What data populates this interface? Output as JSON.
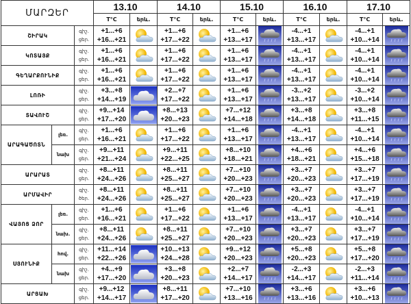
{
  "header": {
    "title": "ՄԱՐԶԵՐ",
    "dates": [
      "13.10",
      "14.10",
      "15.10",
      "16.10",
      "17.10"
    ],
    "temp_label": "T°C",
    "icon_label": "երև."
  },
  "icon_types": {
    "partly": "partly-cloudy-icon",
    "cloud": "cloudy-icon",
    "rain": "rain-cloud-icon"
  },
  "regions": [
    {
      "name": "ՇԻՐԱԿ",
      "zones": [
        {
          "zone": "",
          "night_label": "գիշ.",
          "day_label": "ցեր.",
          "days": [
            {
              "night": "+1...+6",
              "day": "+16...+21",
              "icon": "partly"
            },
            {
              "night": "+1...+6",
              "day": "+17...+22",
              "icon": "partly"
            },
            {
              "night": "+1...+6",
              "day": "+13...+17",
              "icon": "rain"
            },
            {
              "night": "-4...+1",
              "day": "+13...+17",
              "icon": "partly"
            },
            {
              "night": "-4...+1",
              "day": "+10...+14",
              "icon": "rain"
            }
          ]
        }
      ]
    },
    {
      "name": "ԿՈՏԱՅՔ",
      "zones": [
        {
          "zone": "",
          "night_label": "գիշ.",
          "day_label": "ցեր.",
          "days": [
            {
              "night": "+1...+6",
              "day": "+16...+21",
              "icon": "partly"
            },
            {
              "night": "+1...+6",
              "day": "+17...+22",
              "icon": "partly"
            },
            {
              "night": "+1...+6",
              "day": "+13...+17",
              "icon": "rain"
            },
            {
              "night": "-4...+1",
              "day": "+13...+17",
              "icon": "partly"
            },
            {
              "night": "-4...+1",
              "day": "+10...+14",
              "icon": "rain"
            }
          ]
        }
      ]
    },
    {
      "name": "ԳԵՂԱՐՔՈՒՆԻՔ",
      "zones": [
        {
          "zone": "",
          "night_label": "գիշ.",
          "day_label": "ցեր.",
          "days": [
            {
              "night": "+1...+6",
              "day": "+16...+21",
              "icon": "partly"
            },
            {
              "night": "+1...+6",
              "day": "+17...+22",
              "icon": "partly"
            },
            {
              "night": "+1...+6",
              "day": "+13...+17",
              "icon": "rain"
            },
            {
              "night": "-4...+1",
              "day": "+13...+17",
              "icon": "partly"
            },
            {
              "night": "-4...+1",
              "day": "+10...+14",
              "icon": "rain"
            }
          ]
        }
      ]
    },
    {
      "name": "ԼՈՌԻ",
      "zones": [
        {
          "zone": "",
          "night_label": "գիշ.",
          "day_label": "ցեր.",
          "days": [
            {
              "night": "+3...+8",
              "day": "+14...+19",
              "icon": "cloud"
            },
            {
              "night": "+2...+7",
              "day": "+17...+22",
              "icon": "partly"
            },
            {
              "night": "+1...+6",
              "day": "+13...+17",
              "icon": "rain"
            },
            {
              "night": "-3...+2",
              "day": "+13...+17",
              "icon": "partly"
            },
            {
              "night": "-3...+2",
              "day": "+10...+14",
              "icon": "rain"
            }
          ]
        }
      ]
    },
    {
      "name": "ՏԱՎՈՒՇ",
      "zones": [
        {
          "zone": "",
          "night_label": "գիշ.",
          "day_label": "ցեր.",
          "days": [
            {
              "night": "+9...+14",
              "day": "+17...+20",
              "icon": "cloud"
            },
            {
              "night": "+8...+13",
              "day": "+20...+23",
              "icon": "partly"
            },
            {
              "night": "+7...+12",
              "day": "+14...+18",
              "icon": "rain"
            },
            {
              "night": "+3...+8",
              "day": "+14...+18",
              "icon": "partly"
            },
            {
              "night": "+3...+8",
              "day": "+11...+15",
              "icon": "rain"
            }
          ]
        }
      ]
    },
    {
      "name": "ԱՐԱԳԱԾՈՏՆ",
      "zones": [
        {
          "zone": "լեռ.",
          "night_label": "գիշ.",
          "day_label": "ցեր.",
          "days": [
            {
              "night": "+1...+6",
              "day": "+16...+21",
              "icon": "partly"
            },
            {
              "night": "+1...+6",
              "day": "+17...+22",
              "icon": "partly"
            },
            {
              "night": "+1...+6",
              "day": "+13...+17",
              "icon": "rain"
            },
            {
              "night": "-4...+1",
              "day": "+13...+17",
              "icon": "partly"
            },
            {
              "night": "-4...+1",
              "day": "+10...+14",
              "icon": "rain"
            }
          ]
        },
        {
          "zone": "նախ",
          "night_label": "գիշ.",
          "day_label": "ցեր.",
          "days": [
            {
              "night": "+9...+11",
              "day": "+21...+24",
              "icon": "partly"
            },
            {
              "night": "+9...+11",
              "day": "+22...+25",
              "icon": "partly"
            },
            {
              "night": "+8...+10",
              "day": "+18...+21",
              "icon": "rain"
            },
            {
              "night": "+4...+6",
              "day": "+18...+21",
              "icon": "partly"
            },
            {
              "night": "+4...+6",
              "day": "+15...+18",
              "icon": "rain"
            }
          ]
        }
      ]
    },
    {
      "name": "ԱՐԱՐԱՏ",
      "zones": [
        {
          "zone": "",
          "night_label": "գիշ.",
          "day_label": "ցեր.",
          "days": [
            {
              "night": "+8...+11",
              "day": "+24...+26",
              "icon": "partly"
            },
            {
              "night": "+8...+11",
              "day": "+25...+27",
              "icon": "partly"
            },
            {
              "night": "+7...+10",
              "day": "+20...+23",
              "icon": "rain"
            },
            {
              "night": "+3...+7",
              "day": "+20...+23",
              "icon": "partly"
            },
            {
              "night": "+3...+7",
              "day": "+17...+19",
              "icon": "rain"
            }
          ]
        }
      ]
    },
    {
      "name": "ԱՐՄԱՎԻՐ",
      "zones": [
        {
          "zone": "",
          "night_label": "գիշ.",
          "day_label": "ծեր.",
          "days": [
            {
              "night": "+8...+11",
              "day": "+24...+26",
              "icon": "partly"
            },
            {
              "night": "+8...+11",
              "day": "+25...+27",
              "icon": "partly"
            },
            {
              "night": "+7...+10",
              "day": "+20...+23",
              "icon": "rain"
            },
            {
              "night": "+3...+7",
              "day": "+20...+23",
              "icon": "partly"
            },
            {
              "night": "+3...+7",
              "day": "+17...+19",
              "icon": "rain"
            }
          ]
        }
      ]
    },
    {
      "name": "ՎԱՅՈՑ ՁՈՐ",
      "zones": [
        {
          "zone": "լեռ.",
          "night_label": "գիշ.",
          "day_label": "ցեր.",
          "days": [
            {
              "night": "+1...+6",
              "day": "+16...+21",
              "icon": "partly"
            },
            {
              "night": "+1...+6",
              "day": "+17...+22",
              "icon": "partly"
            },
            {
              "night": "+1...+6",
              "day": "+13...+17",
              "icon": "rain"
            },
            {
              "night": "-4...+1",
              "day": "+13...+17",
              "icon": "partly"
            },
            {
              "night": "-4...+1",
              "day": "+10...+14",
              "icon": "rain"
            }
          ]
        },
        {
          "zone": "նախ.",
          "night_label": "գիշ.",
          "day_label": "ցեր.",
          "days": [
            {
              "night": "+8...+11",
              "day": "+24...+26",
              "icon": "partly"
            },
            {
              "night": "+8...+11",
              "day": "+25...+27",
              "icon": "partly"
            },
            {
              "night": "+7...+10",
              "day": "+20...+23",
              "icon": "rain"
            },
            {
              "night": "+3...+7",
              "day": "+20...+23",
              "icon": "partly"
            },
            {
              "night": "+3...+7",
              "day": "+17...+19",
              "icon": "rain"
            }
          ]
        }
      ]
    },
    {
      "name": "ՍՅՈՒՆԻՔ",
      "zones": [
        {
          "zone": "հով.",
          "night_label": "գիշ.",
          "day_label": "ցեր.",
          "days": [
            {
              "night": "+11...+14",
              "day": "+22...+26",
              "icon": "cloud"
            },
            {
              "night": "+10...+13",
              "day": "+24...+28",
              "icon": "partly"
            },
            {
              "night": "+9...+12",
              "day": "+20...+23",
              "icon": "rain"
            },
            {
              "night": "+5...+8",
              "day": "+20...+23",
              "icon": "partly"
            },
            {
              "night": "+5...+8",
              "day": "+17...+20",
              "icon": "rain"
            }
          ]
        },
        {
          "zone": "նախ",
          "night_label": "գիշ.",
          "day_label": "ցեր.",
          "days": [
            {
              "night": "+4...+9",
              "day": "+17...+20",
              "icon": "cloud"
            },
            {
              "night": "+3...+8",
              "day": "+20...+23",
              "icon": "partly"
            },
            {
              "night": "+2...+7",
              "day": "+14...+17",
              "icon": "rain"
            },
            {
              "night": "-2...+3",
              "day": "+14...+17",
              "icon": "partly"
            },
            {
              "night": "-2...+3",
              "day": "+11...+14",
              "icon": "rain"
            }
          ]
        }
      ]
    },
    {
      "name": "ԱՐՑԱԽ",
      "zones": [
        {
          "zone": "",
          "night_label": "գիշ.",
          "day_label": "ցեր.",
          "days": [
            {
              "night": "+9...+12",
              "day": "+14...+17",
              "icon": "cloud"
            },
            {
              "night": "+8...+11",
              "day": "+17...+20",
              "icon": "partly"
            },
            {
              "night": "+7...+10",
              "day": "+13...+16",
              "icon": "rain"
            },
            {
              "night": "+3...+6",
              "day": "+13...+16",
              "icon": "partly"
            },
            {
              "night": "+3...+6",
              "day": "+10...+13",
              "icon": "rain"
            }
          ]
        }
      ]
    }
  ]
}
